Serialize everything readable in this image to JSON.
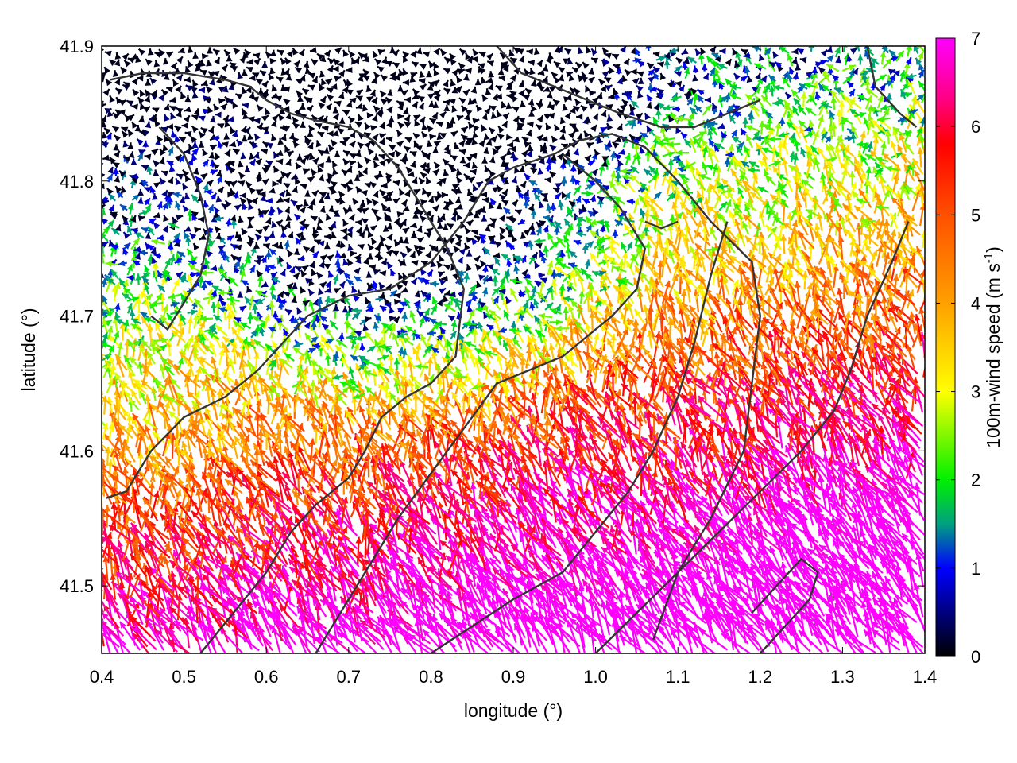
{
  "chart_data": {
    "type": "vector-field",
    "xlabel": "longitude (°)",
    "ylabel": "latitude (°)",
    "xlim": [
      0.4,
      1.4
    ],
    "ylim": [
      41.45,
      41.9
    ],
    "xticks": [
      "0.4",
      "0.5",
      "0.6",
      "0.7",
      "0.8",
      "0.9",
      "1.0",
      "1.1",
      "1.2",
      "1.3",
      "1.4"
    ],
    "yticks": [
      "41.5",
      "41.6",
      "41.7",
      "41.8",
      "41.9"
    ],
    "colorbar": {
      "label": "100m-wind speed (m s-1)",
      "label_main": "100m-wind speed (m s",
      "label_sup": "-1",
      "label_end": ")",
      "range": [
        0,
        7
      ],
      "ticks": [
        "0",
        "1",
        "2",
        "3",
        "4",
        "5",
        "6",
        "7"
      ],
      "colors": [
        {
          "value": 0,
          "color": "#000000"
        },
        {
          "value": 1,
          "color": "#0000ff"
        },
        {
          "value": 1.5,
          "color": "#00a080"
        },
        {
          "value": 2,
          "color": "#00f000"
        },
        {
          "value": 3,
          "color": "#ffff00"
        },
        {
          "value": 4,
          "color": "#ffa000"
        },
        {
          "value": 5,
          "color": "#ff5000"
        },
        {
          "value": 5.8,
          "color": "#ff0000"
        },
        {
          "value": 6.3,
          "color": "#ff0080"
        },
        {
          "value": 7,
          "color": "#ff00ff"
        }
      ]
    },
    "contours": [
      [
        [
          0.405,
          41.565
        ],
        [
          0.43,
          41.57
        ],
        [
          0.46,
          41.6
        ],
        [
          0.5,
          41.625
        ],
        [
          0.55,
          41.64
        ],
        [
          0.59,
          41.66
        ],
        [
          0.62,
          41.68
        ],
        [
          0.65,
          41.7
        ],
        [
          0.7,
          41.715
        ],
        [
          0.75,
          41.72
        ],
        [
          0.8,
          41.74
        ],
        [
          0.84,
          41.77
        ],
        [
          0.87,
          41.8
        ],
        [
          0.9,
          41.81
        ],
        [
          0.95,
          41.82
        ],
        [
          0.98,
          41.83
        ],
        [
          1.02,
          41.835
        ],
        [
          1.06,
          41.825
        ],
        [
          1.1,
          41.8
        ],
        [
          1.14,
          41.77
        ],
        [
          1.19,
          41.74
        ],
        [
          1.2,
          41.7
        ],
        [
          1.19,
          41.65
        ],
        [
          1.18,
          41.6
        ],
        [
          1.14,
          41.55
        ],
        [
          1.1,
          41.51
        ],
        [
          1.07,
          41.46
        ]
      ],
      [
        [
          0.52,
          41.45
        ],
        [
          0.56,
          41.48
        ],
        [
          0.6,
          41.51
        ],
        [
          0.63,
          41.54
        ],
        [
          0.66,
          41.56
        ],
        [
          0.7,
          41.58
        ],
        [
          0.72,
          41.6
        ],
        [
          0.74,
          41.625
        ],
        [
          0.77,
          41.64
        ],
        [
          0.8,
          41.65
        ],
        [
          0.83,
          41.67
        ],
        [
          0.84,
          41.72
        ],
        [
          0.82,
          41.75
        ],
        [
          0.78,
          41.79
        ],
        [
          0.76,
          41.81
        ],
        [
          0.73,
          41.83
        ],
        [
          0.7,
          41.84
        ],
        [
          0.66,
          41.845
        ],
        [
          0.63,
          41.85
        ],
        [
          0.6,
          41.86
        ],
        [
          0.58,
          41.87
        ],
        [
          0.55,
          41.875
        ],
        [
          0.5,
          41.88
        ],
        [
          0.45,
          41.88
        ],
        [
          0.41,
          41.875
        ]
      ],
      [
        [
          0.66,
          41.45
        ],
        [
          0.7,
          41.49
        ],
        [
          0.73,
          41.52
        ],
        [
          0.76,
          41.55
        ],
        [
          0.79,
          41.575
        ],
        [
          0.82,
          41.6
        ],
        [
          0.85,
          41.625
        ],
        [
          0.88,
          41.65
        ],
        [
          0.92,
          41.66
        ],
        [
          0.96,
          41.67
        ],
        [
          0.99,
          41.685
        ],
        [
          1.02,
          41.7
        ],
        [
          1.05,
          41.72
        ],
        [
          1.06,
          41.75
        ],
        [
          1.03,
          41.78
        ],
        [
          1.0,
          41.8
        ],
        [
          0.98,
          41.81
        ],
        [
          0.96,
          41.82
        ]
      ],
      [
        [
          0.8,
          41.45
        ],
        [
          0.85,
          41.47
        ],
        [
          0.9,
          41.49
        ],
        [
          0.96,
          41.51
        ],
        [
          1.0,
          41.54
        ],
        [
          1.04,
          41.57
        ],
        [
          1.07,
          41.6
        ],
        [
          1.1,
          41.64
        ],
        [
          1.12,
          41.68
        ],
        [
          1.14,
          41.73
        ],
        [
          1.16,
          41.77
        ]
      ],
      [
        [
          1.0,
          41.45
        ],
        [
          1.05,
          41.48
        ],
        [
          1.1,
          41.51
        ],
        [
          1.15,
          41.54
        ],
        [
          1.2,
          41.57
        ],
        [
          1.25,
          41.6
        ],
        [
          1.29,
          41.63
        ],
        [
          1.31,
          41.66
        ],
        [
          1.33,
          41.7
        ],
        [
          1.36,
          41.74
        ],
        [
          1.38,
          41.77
        ]
      ],
      [
        [
          1.2,
          41.45
        ],
        [
          1.23,
          41.47
        ],
        [
          1.26,
          41.49
        ],
        [
          1.27,
          41.51
        ],
        [
          1.25,
          41.52
        ],
        [
          1.22,
          41.5
        ],
        [
          1.19,
          41.48
        ]
      ],
      [
        [
          0.47,
          41.84
        ],
        [
          0.5,
          41.82
        ],
        [
          0.52,
          41.79
        ],
        [
          0.53,
          41.76
        ],
        [
          0.52,
          41.73
        ],
        [
          0.5,
          41.71
        ],
        [
          0.48,
          41.69
        ],
        [
          0.46,
          41.7
        ]
      ],
      [
        [
          0.88,
          41.9
        ],
        [
          0.91,
          41.88
        ],
        [
          0.95,
          41.87
        ],
        [
          0.99,
          41.86
        ],
        [
          1.03,
          41.85
        ],
        [
          1.08,
          41.84
        ],
        [
          1.12,
          41.84
        ],
        [
          1.16,
          41.85
        ],
        [
          1.2,
          41.86
        ]
      ],
      [
        [
          1.33,
          41.9
        ],
        [
          1.34,
          41.87
        ],
        [
          1.37,
          41.85
        ],
        [
          1.39,
          41.84
        ]
      ],
      [
        [
          1.06,
          41.77
        ],
        [
          1.08,
          41.765
        ],
        [
          1.1,
          41.77
        ]
      ]
    ]
  }
}
